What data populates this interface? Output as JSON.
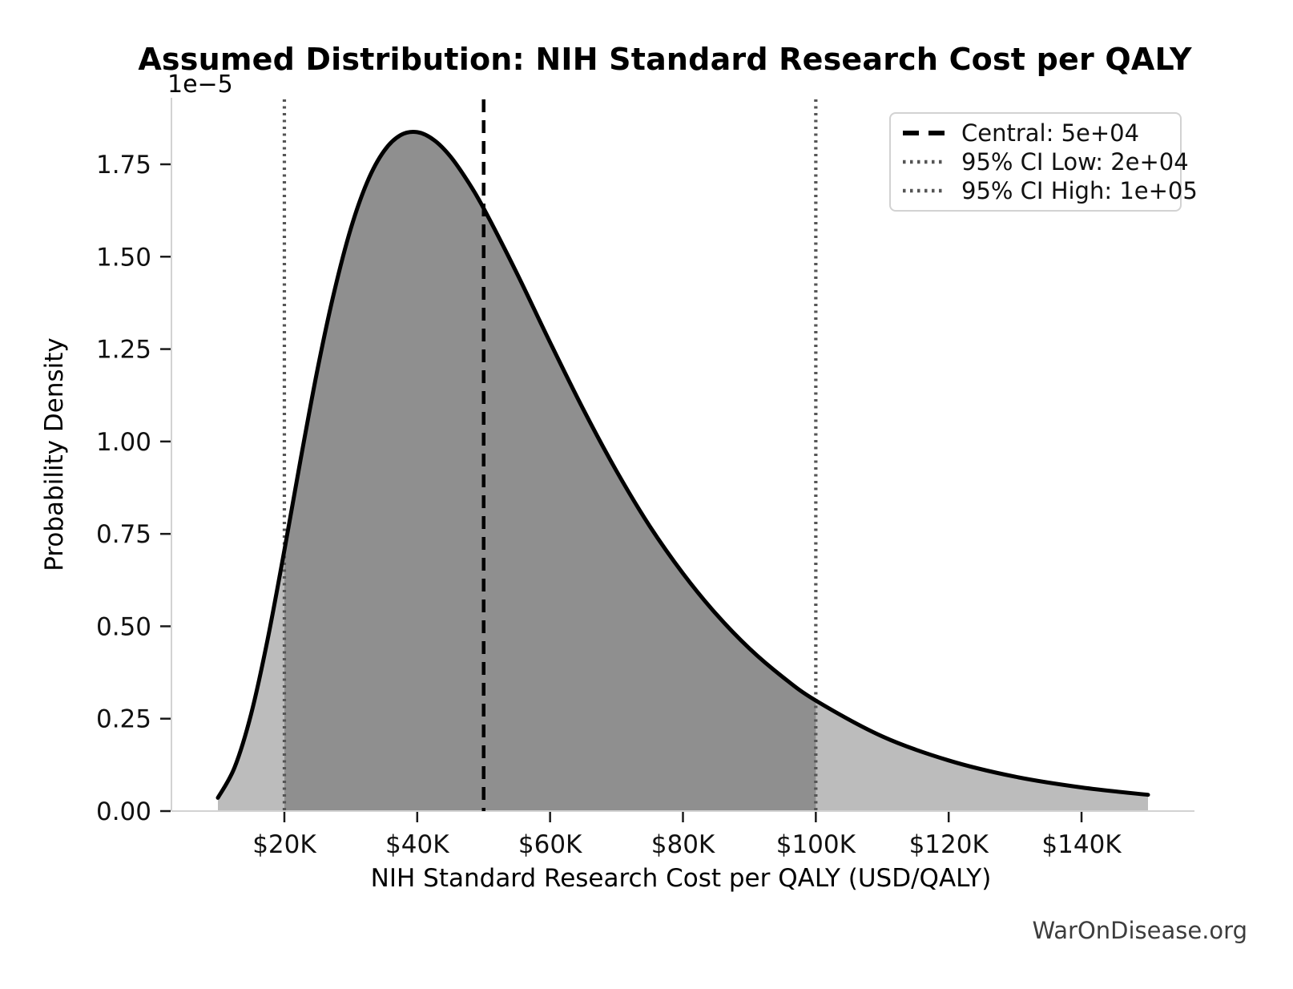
{
  "chart_data": {
    "type": "area",
    "title": "Assumed Distribution: NIH Standard Research Cost per QALY",
    "xlabel": "NIH Standard Research Cost per QALY (USD/QALY)",
    "ylabel": "Probability Density",
    "y_scale_offset_text": "1e−5",
    "x_tick_labels": [
      "$20K",
      "$40K",
      "$60K",
      "$80K",
      "$100K",
      "$120K",
      "$140K"
    ],
    "x_tick_values_k": [
      20,
      40,
      60,
      80,
      100,
      120,
      140
    ],
    "y_tick_labels": [
      "0.00",
      "0.25",
      "0.50",
      "0.75",
      "1.00",
      "1.25",
      "1.50",
      "1.75"
    ],
    "y_tick_values_e5": [
      0,
      0.25,
      0.5,
      0.75,
      1.0,
      1.25,
      1.5,
      1.75
    ],
    "xlim_k": [
      3,
      157
    ],
    "ylim_e5": [
      0,
      1.93
    ],
    "curve": {
      "x_k": [
        10,
        12.5,
        15,
        17.5,
        20,
        22.5,
        25,
        27.5,
        30,
        32.5,
        35,
        37.5,
        40,
        42.5,
        45,
        47.5,
        50,
        55,
        60,
        65,
        70,
        75,
        80,
        85,
        90,
        95,
        100,
        110,
        120,
        130,
        140,
        150
      ],
      "density_e5": [
        0.036,
        0.118,
        0.263,
        0.466,
        0.706,
        0.957,
        1.196,
        1.405,
        1.576,
        1.703,
        1.786,
        1.829,
        1.837,
        1.816,
        1.771,
        1.707,
        1.631,
        1.455,
        1.268,
        1.087,
        0.92,
        0.771,
        0.643,
        0.533,
        0.44,
        0.363,
        0.299,
        0.202,
        0.137,
        0.093,
        0.064,
        0.044
      ]
    },
    "markers": {
      "central": {
        "value_k": 50,
        "label": "Central: 5e+04",
        "line_style": "dashed",
        "color": "#000000"
      },
      "ci_low": {
        "value_k": 20,
        "label": "95% CI Low: 2e+04",
        "line_style": "dotted",
        "color": "#555555"
      },
      "ci_high": {
        "value_k": 100,
        "label": "95% CI High: 1e+05",
        "line_style": "dotted",
        "color": "#555555"
      }
    },
    "ci_fill_range_k": [
      20,
      100
    ],
    "colors": {
      "curve": "#000000",
      "fill_outer": "#bcbcbc",
      "fill_ci": "#8f8f8f",
      "spine": "#d2d2d2",
      "tick": "#1a1a1a",
      "tick_label": "#111111",
      "watermark": "#3d3d3d"
    },
    "legend_items": [
      {
        "label": "Central: 5e+04",
        "style": "dashed",
        "color": "#000000"
      },
      {
        "label": "95% CI Low: 2e+04",
        "style": "dotted",
        "color": "#555555"
      },
      {
        "label": "95% CI High: 1e+05",
        "style": "dotted",
        "color": "#555555"
      }
    ]
  },
  "watermark": "WarOnDisease.org"
}
